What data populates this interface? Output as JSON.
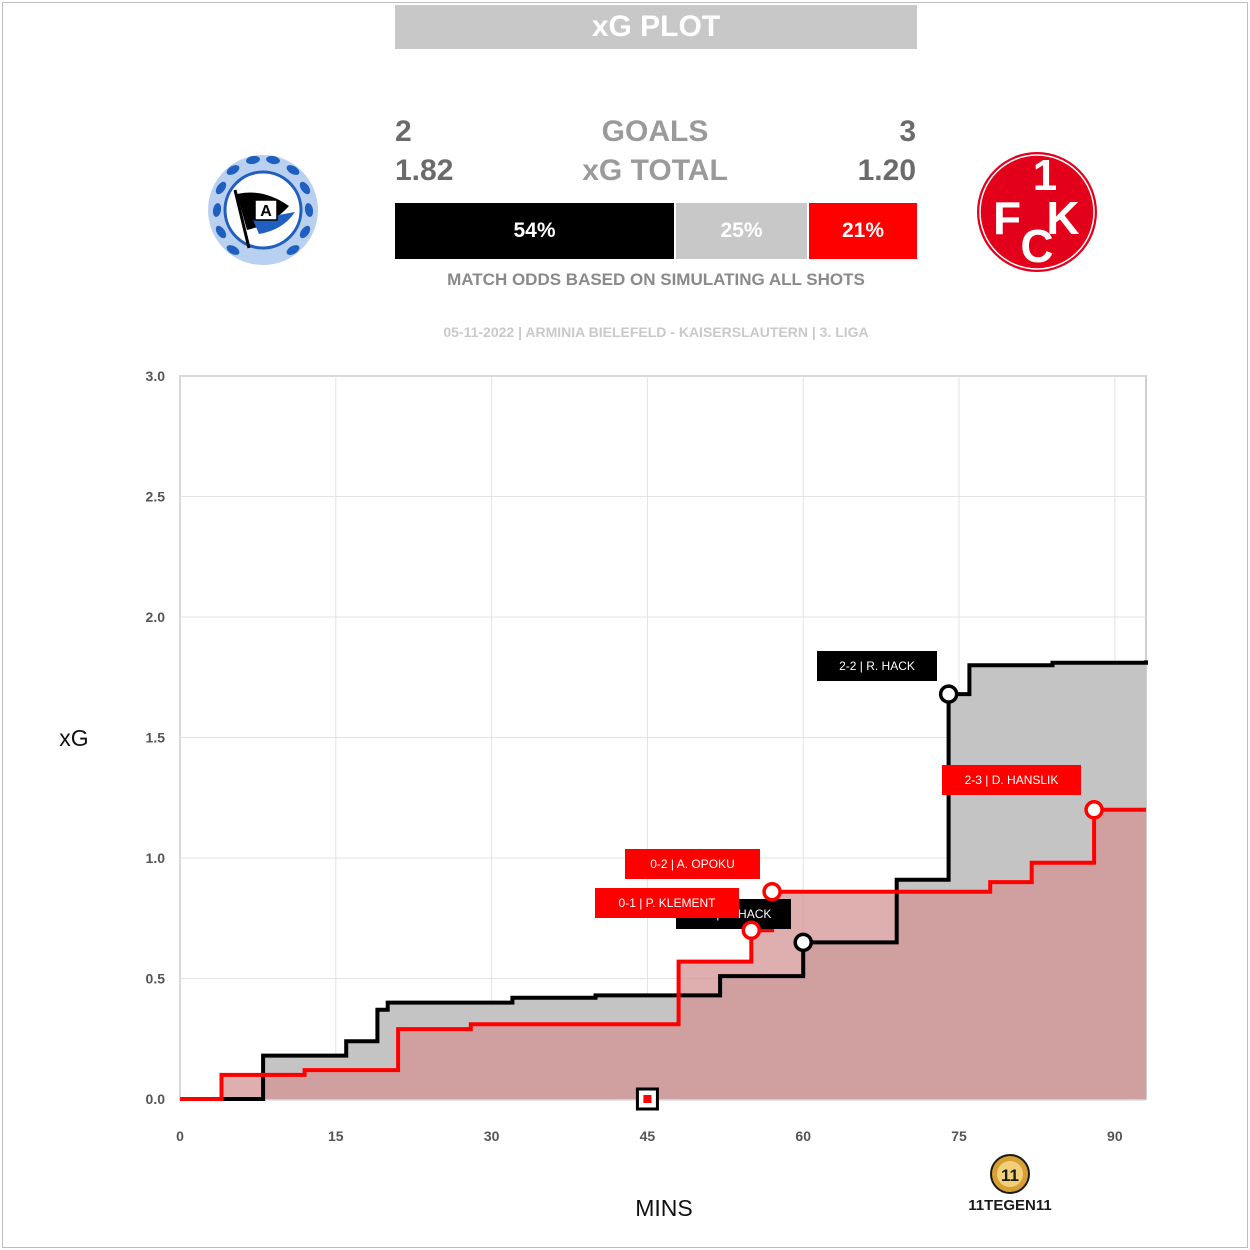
{
  "header": {
    "title": "xG PLOT"
  },
  "stats": {
    "home_goals": "2",
    "goals_label": "GOALS",
    "away_goals": "3",
    "home_xg": "1.82",
    "xg_label": "xG TOTAL",
    "away_xg": "1.20"
  },
  "odds": {
    "home": "54%",
    "draw": "25%",
    "away": "21%",
    "note": "MATCH ODDS BASED ON SIMULATING ALL SHOTS"
  },
  "match_info": "05-11-2022 | ARMINIA BIELEFELD - KAISERSLAUTERN | 3. LIGA",
  "badges": {
    "home": "arminia-bielefeld-crest",
    "away": "fc-kaiserslautern-crest"
  },
  "branding": {
    "logo_text": "11TEGEN11"
  },
  "colors": {
    "home": "#000000",
    "away": "#ff0000",
    "draw": "#c8c8c8",
    "home_fill": "#c4c4c4",
    "away_fill": "#d49494"
  },
  "chart_data": {
    "type": "line",
    "xlabel": "MINS",
    "ylabel": "xG",
    "xlim": [
      0,
      93
    ],
    "ylim": [
      0,
      3
    ],
    "x_ticks": [
      "0",
      "15",
      "30",
      "45",
      "60",
      "75",
      "90"
    ],
    "y_ticks": [
      "0.0",
      "0.5",
      "1.0",
      "1.5",
      "2.0",
      "2.5",
      "3.0"
    ],
    "grid": true,
    "series": [
      {
        "team": "home",
        "x": [
          0,
          8,
          16,
          19,
          20,
          32,
          40,
          52,
          60,
          69,
          74,
          76,
          84,
          93
        ],
        "y": [
          0,
          0.18,
          0.24,
          0.37,
          0.4,
          0.42,
          0.43,
          0.51,
          0.65,
          0.91,
          1.68,
          1.8,
          1.81,
          1.82
        ]
      },
      {
        "team": "away",
        "x": [
          0,
          4,
          12,
          21,
          28,
          48,
          55,
          57,
          69,
          78,
          82,
          88,
          93
        ],
        "y": [
          0,
          0.1,
          0.12,
          0.29,
          0.31,
          0.57,
          0.7,
          0.86,
          0.86,
          0.9,
          0.98,
          1.2,
          1.2
        ]
      }
    ],
    "annotations": [
      {
        "label": "0-1 | P. KLEMENT",
        "minute": 55,
        "xg": 0.7,
        "team": "away"
      },
      {
        "label": "0-2 | A. OPOKU",
        "minute": 57,
        "xg": 0.86,
        "team": "away"
      },
      {
        "label": "1-2 | R. HACK",
        "minute": 60,
        "xg": 0.65,
        "team": "home"
      },
      {
        "label": "2-2 | R. HACK",
        "minute": 74,
        "xg": 1.68,
        "team": "home"
      },
      {
        "label": "2-3 | D. HANSLIK",
        "minute": 88,
        "xg": 1.2,
        "team": "away"
      }
    ],
    "halftime_marker_minute": 45
  }
}
